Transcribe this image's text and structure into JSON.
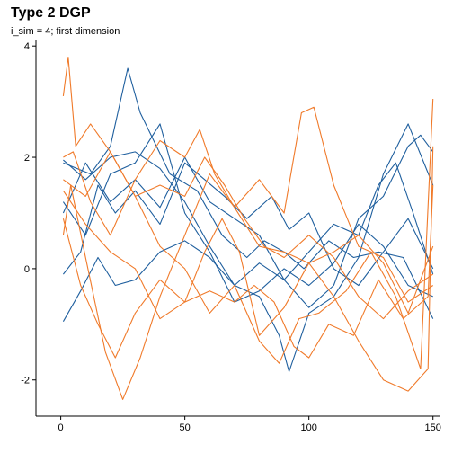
{
  "chart_data": {
    "type": "line",
    "title": "Type 2 DGP",
    "subtitle": "i_sim = 4; first dimension",
    "xlabel": "",
    "ylabel": "",
    "xlim": [
      -10,
      153
    ],
    "ylim": [
      -2.65,
      4.1
    ],
    "xticks": [
      0,
      50,
      100,
      150
    ],
    "yticks": [
      -2,
      0,
      2,
      4
    ],
    "grid": false,
    "legend": "none",
    "colors": {
      "blue": "#1f5f9e",
      "orange": "#f07a2a"
    },
    "series": [
      {
        "color": "blue",
        "points": [
          [
            1,
            1.9
          ],
          [
            12,
            1.7
          ],
          [
            20,
            2.2
          ],
          [
            27,
            3.6
          ],
          [
            32,
            2.8
          ],
          [
            44,
            1.7
          ],
          [
            55,
            1.4
          ],
          [
            65,
            0.6
          ],
          [
            75,
            0.2
          ],
          [
            82,
            0.5
          ],
          [
            90,
            0.3
          ],
          [
            98,
            0.0
          ],
          [
            108,
            0.5
          ],
          [
            118,
            0.2
          ],
          [
            128,
            0.3
          ],
          [
            138,
            0.2
          ],
          [
            150,
            -0.9
          ]
        ]
      },
      {
        "color": "blue",
        "points": [
          [
            1,
            1.95
          ],
          [
            10,
            1.6
          ],
          [
            20,
            2.0
          ],
          [
            30,
            2.1
          ],
          [
            40,
            1.8
          ],
          [
            50,
            1.2
          ],
          [
            60,
            0.4
          ],
          [
            70,
            -0.3
          ],
          [
            80,
            -0.5
          ],
          [
            88,
            -1.2
          ],
          [
            92,
            -1.85
          ],
          [
            100,
            -0.8
          ],
          [
            110,
            -0.5
          ],
          [
            120,
            0.2
          ],
          [
            130,
            1.7
          ],
          [
            140,
            2.6
          ],
          [
            150,
            1.5
          ]
        ]
      },
      {
        "color": "blue",
        "points": [
          [
            1,
            -0.1
          ],
          [
            8,
            0.3
          ],
          [
            15,
            1.5
          ],
          [
            22,
            1.0
          ],
          [
            30,
            1.4
          ],
          [
            40,
            0.8
          ],
          [
            50,
            1.9
          ],
          [
            58,
            1.6
          ],
          [
            66,
            1.3
          ],
          [
            75,
            0.9
          ],
          [
            85,
            1.3
          ],
          [
            92,
            0.7
          ],
          [
            100,
            1.0
          ],
          [
            110,
            0.0
          ],
          [
            120,
            -0.3
          ],
          [
            130,
            0.3
          ],
          [
            140,
            0.9
          ],
          [
            150,
            0.0
          ]
        ]
      },
      {
        "color": "blue",
        "points": [
          [
            1,
            -0.95
          ],
          [
            8,
            -0.4
          ],
          [
            15,
            0.2
          ],
          [
            22,
            -0.3
          ],
          [
            30,
            -0.2
          ],
          [
            40,
            0.3
          ],
          [
            50,
            0.5
          ],
          [
            60,
            0.2
          ],
          [
            70,
            -0.3
          ],
          [
            80,
            0.1
          ],
          [
            90,
            -0.2
          ],
          [
            100,
            0.3
          ],
          [
            110,
            0.8
          ],
          [
            120,
            0.6
          ],
          [
            128,
            1.5
          ],
          [
            135,
            1.9
          ],
          [
            142,
            1.0
          ],
          [
            150,
            -0.1
          ]
        ]
      },
      {
        "color": "blue",
        "points": [
          [
            1,
            1.0
          ],
          [
            10,
            1.9
          ],
          [
            20,
            1.2
          ],
          [
            30,
            1.6
          ],
          [
            40,
            1.1
          ],
          [
            50,
            2.0
          ],
          [
            60,
            1.2
          ],
          [
            70,
            0.9
          ],
          [
            80,
            0.6
          ],
          [
            90,
            -0.2
          ],
          [
            100,
            -0.7
          ],
          [
            110,
            -0.3
          ],
          [
            120,
            0.9
          ],
          [
            130,
            1.3
          ],
          [
            140,
            2.2
          ],
          [
            145,
            2.4
          ],
          [
            150,
            2.1
          ]
        ]
      },
      {
        "color": "blue",
        "points": [
          [
            1,
            1.2
          ],
          [
            10,
            0.6
          ],
          [
            20,
            1.7
          ],
          [
            30,
            1.9
          ],
          [
            40,
            2.6
          ],
          [
            50,
            1.0
          ],
          [
            60,
            0.3
          ],
          [
            70,
            -0.6
          ],
          [
            80,
            -0.4
          ],
          [
            90,
            0.0
          ],
          [
            100,
            -0.3
          ],
          [
            110,
            0.1
          ],
          [
            120,
            0.8
          ],
          [
            130,
            0.4
          ],
          [
            140,
            -0.3
          ],
          [
            150,
            -0.5
          ]
        ]
      },
      {
        "color": "orange",
        "points": [
          [
            1,
            3.1
          ],
          [
            3,
            3.8
          ],
          [
            6,
            2.2
          ],
          [
            12,
            2.6
          ],
          [
            20,
            2.1
          ],
          [
            30,
            1.3
          ],
          [
            40,
            0.4
          ],
          [
            50,
            0.0
          ],
          [
            60,
            -0.8
          ],
          [
            70,
            -0.3
          ],
          [
            80,
            -1.3
          ],
          [
            88,
            -1.7
          ],
          [
            96,
            -0.9
          ],
          [
            104,
            -0.8
          ],
          [
            115,
            -0.4
          ],
          [
            125,
            0.3
          ],
          [
            135,
            -0.5
          ],
          [
            145,
            -1.8
          ],
          [
            150,
            3.05
          ]
        ]
      },
      {
        "color": "orange",
        "points": [
          [
            1,
            0.6
          ],
          [
            4,
            1.5
          ],
          [
            10,
            0.2
          ],
          [
            18,
            -1.5
          ],
          [
            25,
            -2.35
          ],
          [
            32,
            -1.6
          ],
          [
            40,
            -0.5
          ],
          [
            50,
            0.6
          ],
          [
            60,
            1.7
          ],
          [
            70,
            1.1
          ],
          [
            80,
            0.4
          ],
          [
            90,
            0.3
          ],
          [
            100,
            0.1
          ],
          [
            110,
            -0.5
          ],
          [
            120,
            -1.3
          ],
          [
            130,
            -2.0
          ],
          [
            140,
            -2.2
          ],
          [
            148,
            -1.8
          ],
          [
            150,
            2.2
          ]
        ]
      },
      {
        "color": "orange",
        "points": [
          [
            1,
            2.0
          ],
          [
            5,
            2.1
          ],
          [
            12,
            1.2
          ],
          [
            20,
            0.6
          ],
          [
            30,
            1.6
          ],
          [
            40,
            2.3
          ],
          [
            50,
            2.0
          ],
          [
            56,
            2.5
          ],
          [
            62,
            1.7
          ],
          [
            70,
            1.1
          ],
          [
            80,
            1.6
          ],
          [
            90,
            1.0
          ],
          [
            97,
            2.8
          ],
          [
            102,
            2.9
          ],
          [
            110,
            1.5
          ],
          [
            120,
            0.4
          ],
          [
            130,
            0.2
          ],
          [
            140,
            -0.6
          ],
          [
            150,
            -0.3
          ]
        ]
      },
      {
        "color": "orange",
        "points": [
          [
            1,
            0.9
          ],
          [
            8,
            -0.3
          ],
          [
            15,
            -1.0
          ],
          [
            22,
            -1.6
          ],
          [
            30,
            -0.8
          ],
          [
            40,
            -0.2
          ],
          [
            50,
            -0.6
          ],
          [
            60,
            -0.4
          ],
          [
            70,
            -0.6
          ],
          [
            78,
            -0.3
          ],
          [
            86,
            -0.6
          ],
          [
            94,
            -1.4
          ],
          [
            100,
            -1.6
          ],
          [
            108,
            -1.0
          ],
          [
            118,
            -1.2
          ],
          [
            128,
            -0.2
          ],
          [
            138,
            -0.9
          ],
          [
            148,
            -0.5
          ],
          [
            150,
            1.5
          ]
        ]
      },
      {
        "color": "orange",
        "points": [
          [
            1,
            1.4
          ],
          [
            10,
            0.8
          ],
          [
            20,
            0.3
          ],
          [
            30,
            0.0
          ],
          [
            40,
            -0.9
          ],
          [
            50,
            -0.6
          ],
          [
            58,
            0.3
          ],
          [
            65,
            0.9
          ],
          [
            72,
            0.3
          ],
          [
            80,
            -1.2
          ],
          [
            90,
            -0.7
          ],
          [
            100,
            0.1
          ],
          [
            110,
            0.3
          ],
          [
            120,
            0.6
          ],
          [
            130,
            0.1
          ],
          [
            140,
            -0.8
          ],
          [
            150,
            0.4
          ]
        ]
      },
      {
        "color": "orange",
        "points": [
          [
            1,
            1.6
          ],
          [
            10,
            1.3
          ],
          [
            20,
            2.1
          ],
          [
            30,
            1.3
          ],
          [
            40,
            1.5
          ],
          [
            50,
            1.3
          ],
          [
            58,
            2.0
          ],
          [
            66,
            1.5
          ],
          [
            74,
            0.9
          ],
          [
            82,
            0.4
          ],
          [
            90,
            0.2
          ],
          [
            100,
            0.6
          ],
          [
            110,
            0.2
          ],
          [
            120,
            -0.5
          ],
          [
            130,
            -0.9
          ],
          [
            140,
            -0.4
          ],
          [
            150,
            -0.1
          ]
        ]
      }
    ]
  }
}
